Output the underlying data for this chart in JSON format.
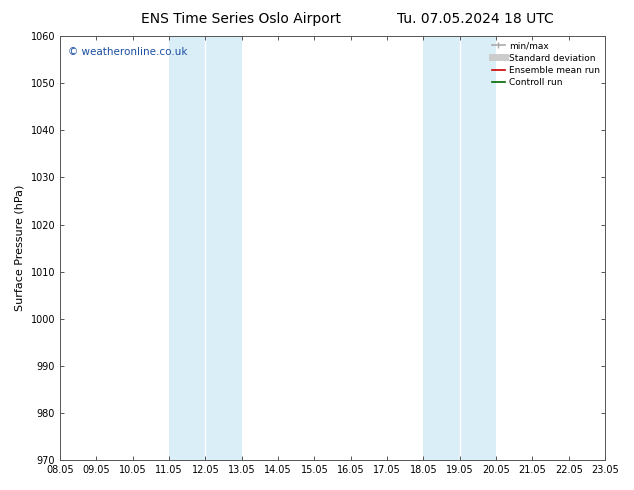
{
  "title_left": "ENS Time Series Oslo Airport",
  "title_right": "Tu. 07.05.2024 18 UTC",
  "ylabel": "Surface Pressure (hPa)",
  "xlabel_ticks": [
    "08.05",
    "09.05",
    "10.05",
    "11.05",
    "12.05",
    "13.05",
    "14.05",
    "15.05",
    "16.05",
    "17.05",
    "18.05",
    "19.05",
    "20.05",
    "21.05",
    "22.05",
    "23.05"
  ],
  "xlim": [
    0,
    15
  ],
  "ylim": [
    970,
    1060
  ],
  "yticks": [
    970,
    980,
    990,
    1000,
    1010,
    1020,
    1030,
    1040,
    1050,
    1060
  ],
  "shaded_regions": [
    {
      "xmin": 3.0,
      "xmax": 3.5,
      "color": "#ddeef8"
    },
    {
      "xmin": 3.5,
      "xmax": 5.0,
      "color": "#ddeef8"
    },
    {
      "xmin": 10.0,
      "xmax": 10.5,
      "color": "#ddeef8"
    },
    {
      "xmin": 10.5,
      "xmax": 12.0,
      "color": "#ddeef8"
    }
  ],
  "watermark_text": "© weatheronline.co.uk",
  "watermark_color": "#1a4fa0",
  "background_color": "#ffffff",
  "tick_label_fontsize": 7,
  "axis_label_fontsize": 8,
  "title_fontsize": 10
}
